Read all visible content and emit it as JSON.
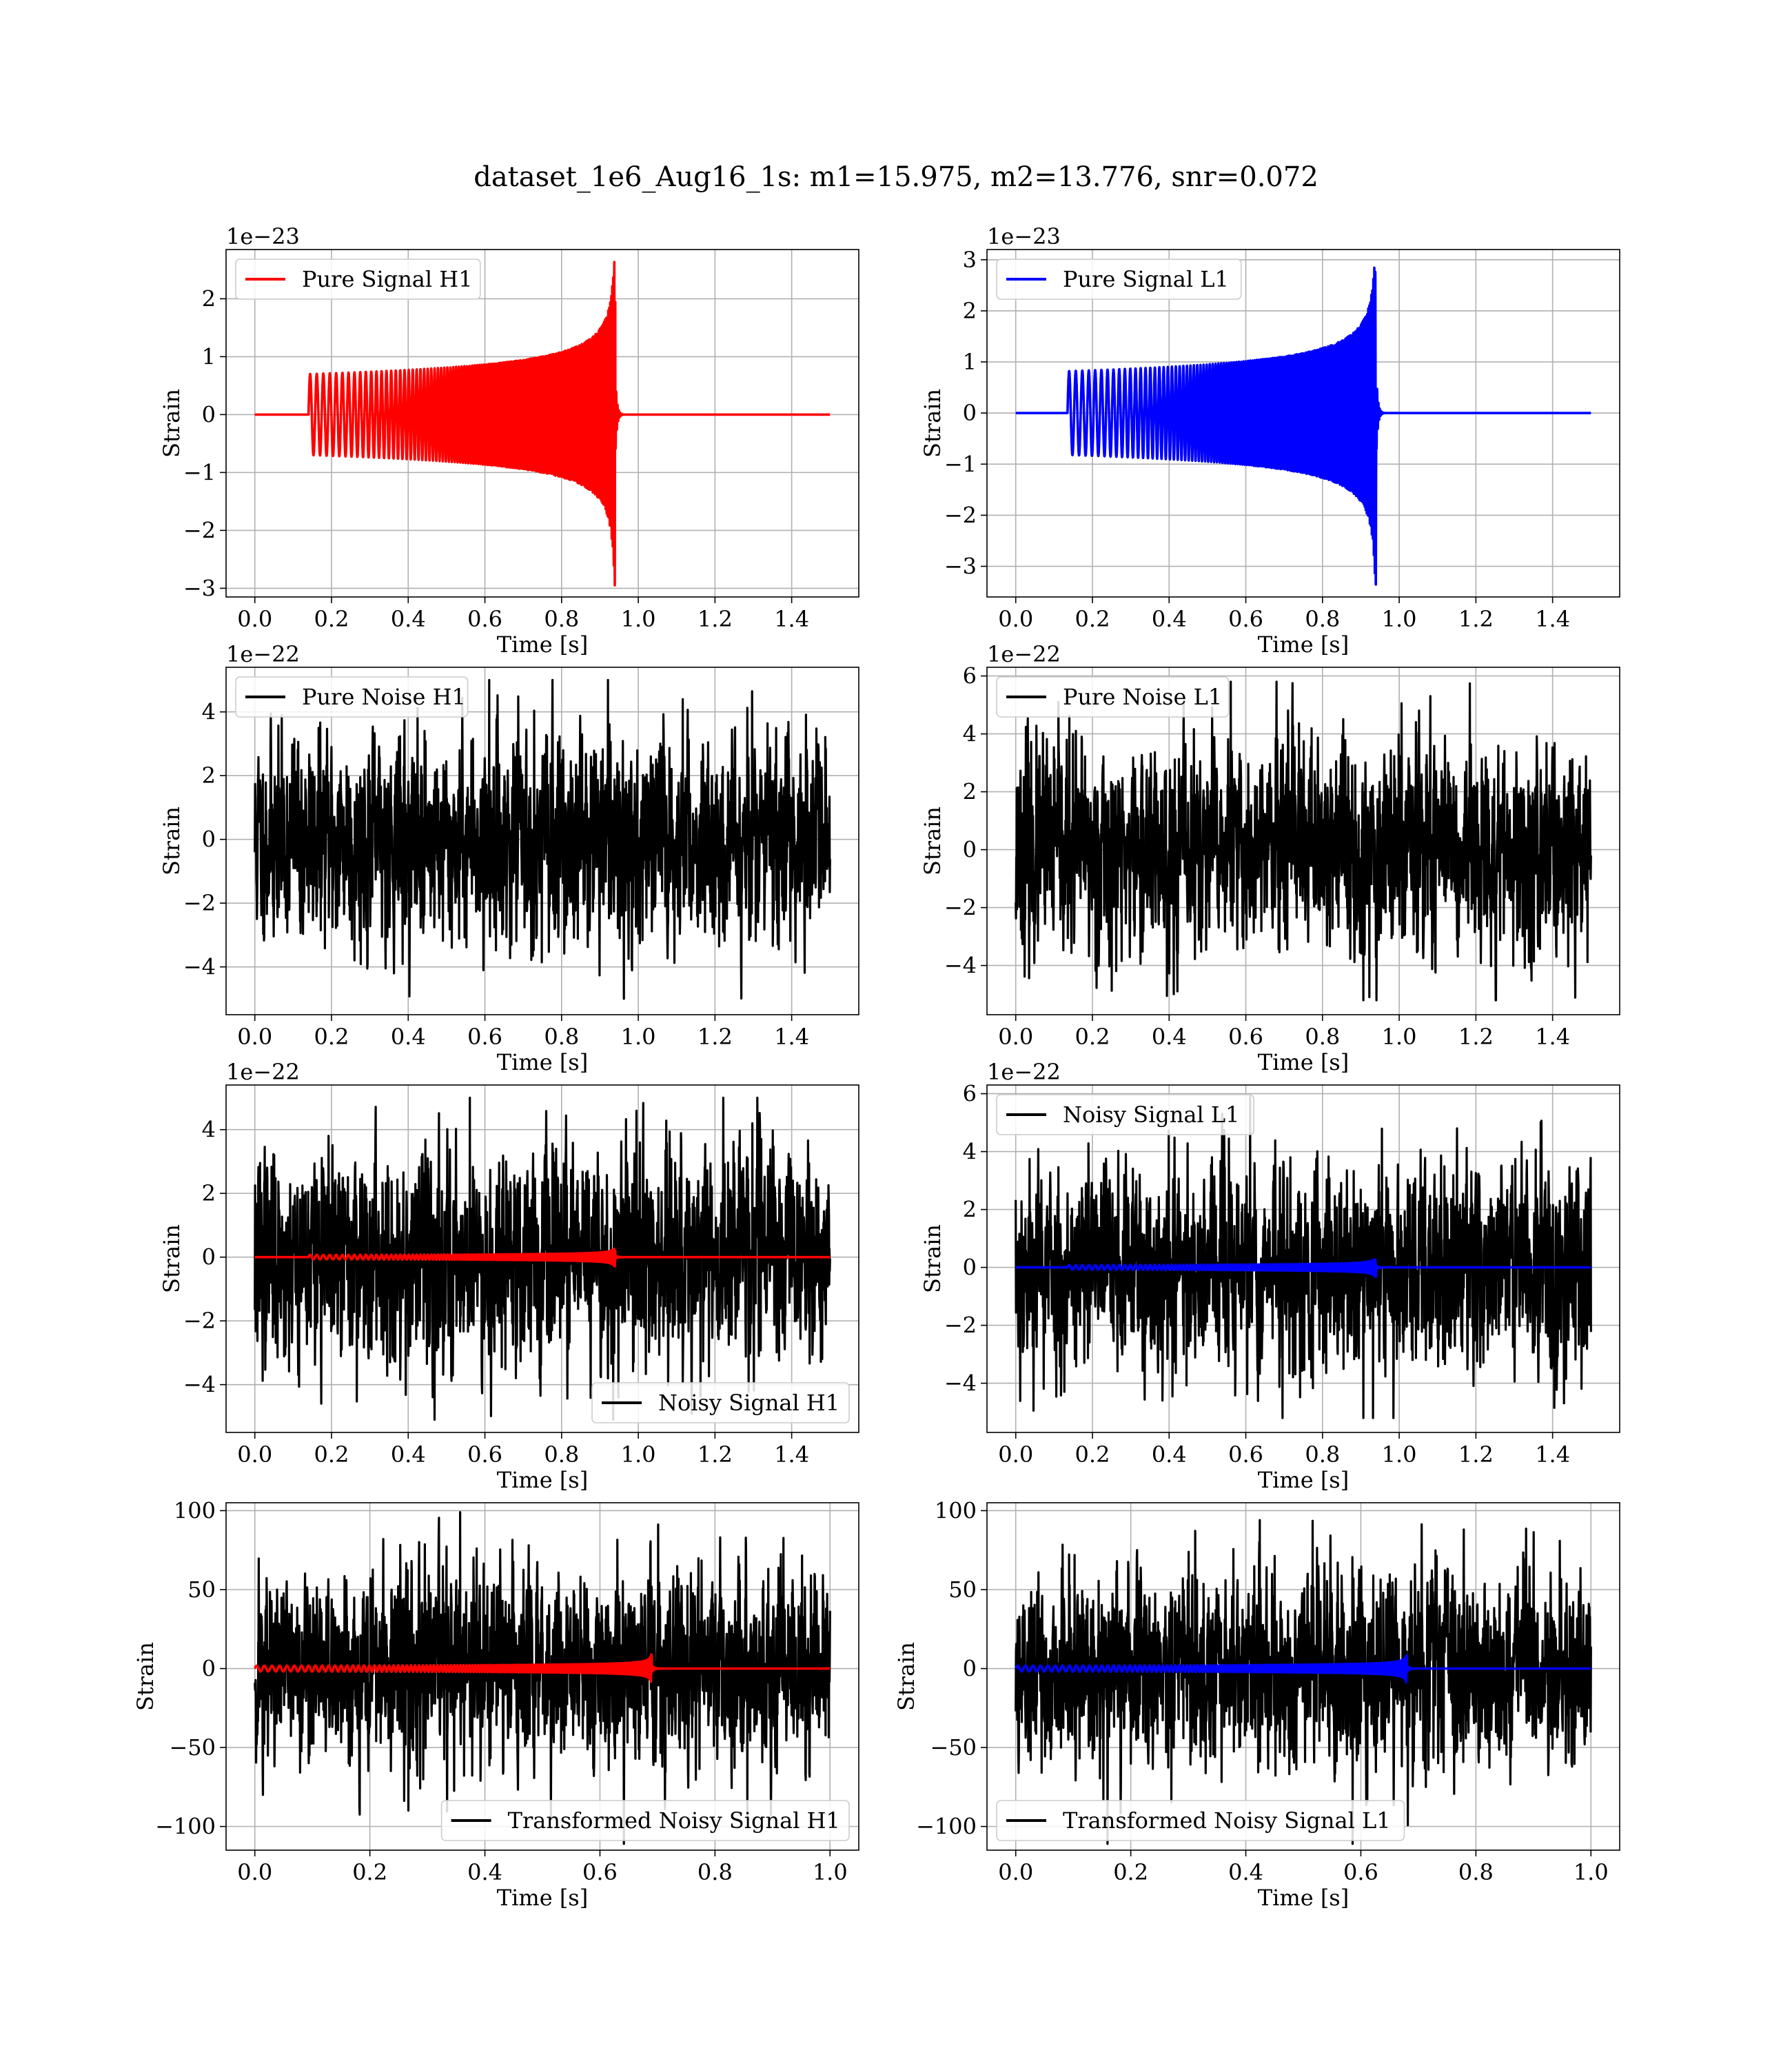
{
  "figure": {
    "suptitle": "dataset_1e6_Aug16_1s: m1=15.975, m2=13.776, snr=0.072"
  },
  "chart_data": [
    {
      "id": "pure-signal-h1",
      "type": "line",
      "xlabel": "Time [s]",
      "ylabel": "Strain",
      "offset_text": "1e−23",
      "xlim": [
        -0.075,
        1.575
      ],
      "ylim": [
        -3.15,
        2.85
      ],
      "xticks": [
        0.0,
        0.2,
        0.4,
        0.6,
        0.8,
        1.0,
        1.2,
        1.4
      ],
      "yticks": [
        -3,
        -2,
        -1,
        0,
        1,
        2
      ],
      "grid": true,
      "legend_loc": "upper left",
      "series": [
        {
          "name": "Pure Signal H1",
          "kind": "chirp",
          "color": "#ff0000",
          "t0": 0.0,
          "t1": 1.5,
          "t_start": 0.14,
          "t_merge": 0.94,
          "amp_start": 0.7,
          "amp_peak_pos": 2.65,
          "amp_peak_neg": -2.95,
          "f_start": 58,
          "f_end": 260,
          "in_legend": true
        }
      ]
    },
    {
      "id": "pure-signal-l1",
      "type": "line",
      "xlabel": "Time [s]",
      "ylabel": "Strain",
      "offset_text": "1e−23",
      "xlim": [
        -0.075,
        1.575
      ],
      "ylim": [
        -3.6,
        3.2
      ],
      "xticks": [
        0.0,
        0.2,
        0.4,
        0.6,
        0.8,
        1.0,
        1.2,
        1.4
      ],
      "yticks": [
        -3,
        -2,
        -1,
        0,
        1,
        2,
        3
      ],
      "grid": true,
      "legend_loc": "upper left",
      "series": [
        {
          "name": "Pure Signal L1",
          "kind": "chirp",
          "color": "#0000ff",
          "t0": 0.0,
          "t1": 1.5,
          "t_start": 0.135,
          "t_merge": 0.94,
          "amp_start": 0.82,
          "amp_peak_pos": 2.85,
          "amp_peak_neg": -3.5,
          "f_start": 58,
          "f_end": 260,
          "in_legend": true
        }
      ]
    },
    {
      "id": "pure-noise-h1",
      "type": "line",
      "xlabel": "Time [s]",
      "ylabel": "Strain",
      "offset_text": "1e−22",
      "xlim": [
        -0.075,
        1.575
      ],
      "ylim": [
        -5.5,
        5.4
      ],
      "xticks": [
        0.0,
        0.2,
        0.4,
        0.6,
        0.8,
        1.0,
        1.2,
        1.4
      ],
      "yticks": [
        -4,
        -2,
        0,
        2,
        4
      ],
      "grid": true,
      "legend_loc": "upper left",
      "series": [
        {
          "name": "Pure Noise H1",
          "kind": "noise",
          "color": "#000000",
          "t0": 0.0,
          "t1": 1.5,
          "sigma": 1.55,
          "ymin": -5.0,
          "ymax": 5.0,
          "seed": 11,
          "in_legend": true
        }
      ]
    },
    {
      "id": "pure-noise-l1",
      "type": "line",
      "xlabel": "Time [s]",
      "ylabel": "Strain",
      "offset_text": "1e−22",
      "xlim": [
        -0.075,
        1.575
      ],
      "ylim": [
        -5.7,
        6.3
      ],
      "xticks": [
        0.0,
        0.2,
        0.4,
        0.6,
        0.8,
        1.0,
        1.2,
        1.4
      ],
      "yticks": [
        -4,
        -2,
        0,
        2,
        4,
        6
      ],
      "grid": true,
      "legend_loc": "upper left",
      "series": [
        {
          "name": "Pure Noise L1",
          "kind": "noise",
          "color": "#000000",
          "t0": 0.0,
          "t1": 1.5,
          "sigma": 1.75,
          "ymin": -5.2,
          "ymax": 5.8,
          "seed": 23,
          "in_legend": true
        }
      ]
    },
    {
      "id": "noisy-signal-h1",
      "type": "line",
      "xlabel": "Time [s]",
      "ylabel": "Strain",
      "offset_text": "1e−22",
      "xlim": [
        -0.075,
        1.575
      ],
      "ylim": [
        -5.5,
        5.4
      ],
      "xticks": [
        0.0,
        0.2,
        0.4,
        0.6,
        0.8,
        1.0,
        1.2,
        1.4
      ],
      "yticks": [
        -4,
        -2,
        0,
        2,
        4
      ],
      "grid": true,
      "legend_loc": "lower right",
      "series": [
        {
          "name": "Noisy Signal H1",
          "kind": "noise",
          "color": "#000000",
          "t0": 0.0,
          "t1": 1.5,
          "sigma": 1.6,
          "ymin": -5.1,
          "ymax": 5.0,
          "seed": 37,
          "in_legend": true
        },
        {
          "name": "",
          "kind": "chirp",
          "color": "#ff0000",
          "t0": 0.0,
          "t1": 1.5,
          "t_start": 0.14,
          "t_merge": 0.94,
          "amp_start": 0.07,
          "amp_peak_pos": 0.26,
          "amp_peak_neg": -0.29,
          "f_start": 58,
          "f_end": 260,
          "in_legend": false
        }
      ]
    },
    {
      "id": "noisy-signal-l1",
      "type": "line",
      "xlabel": "Time [s]",
      "ylabel": "Strain",
      "offset_text": "1e−22",
      "xlim": [
        -0.075,
        1.575
      ],
      "ylim": [
        -5.7,
        6.3
      ],
      "xticks": [
        0.0,
        0.2,
        0.4,
        0.6,
        0.8,
        1.0,
        1.2,
        1.4
      ],
      "yticks": [
        -4,
        -2,
        0,
        2,
        4,
        6
      ],
      "grid": true,
      "legend_loc": "upper left",
      "series": [
        {
          "name": "Noisy Signal L1",
          "kind": "noise",
          "color": "#000000",
          "t0": 0.0,
          "t1": 1.5,
          "sigma": 1.75,
          "ymin": -5.2,
          "ymax": 5.9,
          "seed": 53,
          "in_legend": true
        },
        {
          "name": "",
          "kind": "chirp",
          "color": "#0000ff",
          "t0": 0.0,
          "t1": 1.5,
          "t_start": 0.135,
          "t_merge": 0.94,
          "amp_start": 0.08,
          "amp_peak_pos": 0.28,
          "amp_peak_neg": -0.35,
          "f_start": 58,
          "f_end": 260,
          "in_legend": false
        }
      ]
    },
    {
      "id": "transformed-noisy-signal-h1",
      "type": "line",
      "xlabel": "Time [s]",
      "ylabel": "Strain",
      "offset_text": "",
      "xlim": [
        -0.05,
        1.05
      ],
      "ylim": [
        -115,
        105
      ],
      "xticks": [
        0.0,
        0.2,
        0.4,
        0.6,
        0.8,
        1.0
      ],
      "yticks": [
        -100,
        -50,
        0,
        50,
        100
      ],
      "grid": true,
      "legend_loc": "lower right",
      "series": [
        {
          "name": "Transformed Noisy Signal H1",
          "kind": "noise",
          "color": "#000000",
          "t0": 0.0,
          "t1": 1.0,
          "sigma": 30,
          "ymin": -111,
          "ymax": 99,
          "seed": 71,
          "in_legend": true
        },
        {
          "name": "",
          "kind": "chirp",
          "color": "#ff0000",
          "t0": 0.0,
          "t1": 1.0,
          "t_start": 0.0,
          "t_merge": 0.69,
          "amp_start": 1.8,
          "amp_peak_pos": 9,
          "amp_peak_neg": -9,
          "f_start": 75,
          "f_end": 330,
          "in_legend": false
        }
      ]
    },
    {
      "id": "transformed-noisy-signal-l1",
      "type": "line",
      "xlabel": "Time [s]",
      "ylabel": "Strain",
      "offset_text": "",
      "xlim": [
        -0.05,
        1.05
      ],
      "ylim": [
        -115,
        105
      ],
      "xticks": [
        0.0,
        0.2,
        0.4,
        0.6,
        0.8,
        1.0
      ],
      "yticks": [
        -100,
        -50,
        0,
        50,
        100
      ],
      "grid": true,
      "legend_loc": "lower left",
      "series": [
        {
          "name": "Transformed Noisy Signal L1",
          "kind": "noise",
          "color": "#000000",
          "t0": 0.0,
          "t1": 1.0,
          "sigma": 30,
          "ymin": -111,
          "ymax": 94,
          "seed": 89,
          "in_legend": true
        },
        {
          "name": "",
          "kind": "chirp",
          "color": "#0000ff",
          "t0": 0.0,
          "t1": 1.0,
          "t_start": 0.0,
          "t_merge": 0.68,
          "amp_start": 1.8,
          "amp_peak_pos": 9,
          "amp_peak_neg": -9,
          "f_start": 75,
          "f_end": 330,
          "in_legend": false
        }
      ]
    }
  ]
}
